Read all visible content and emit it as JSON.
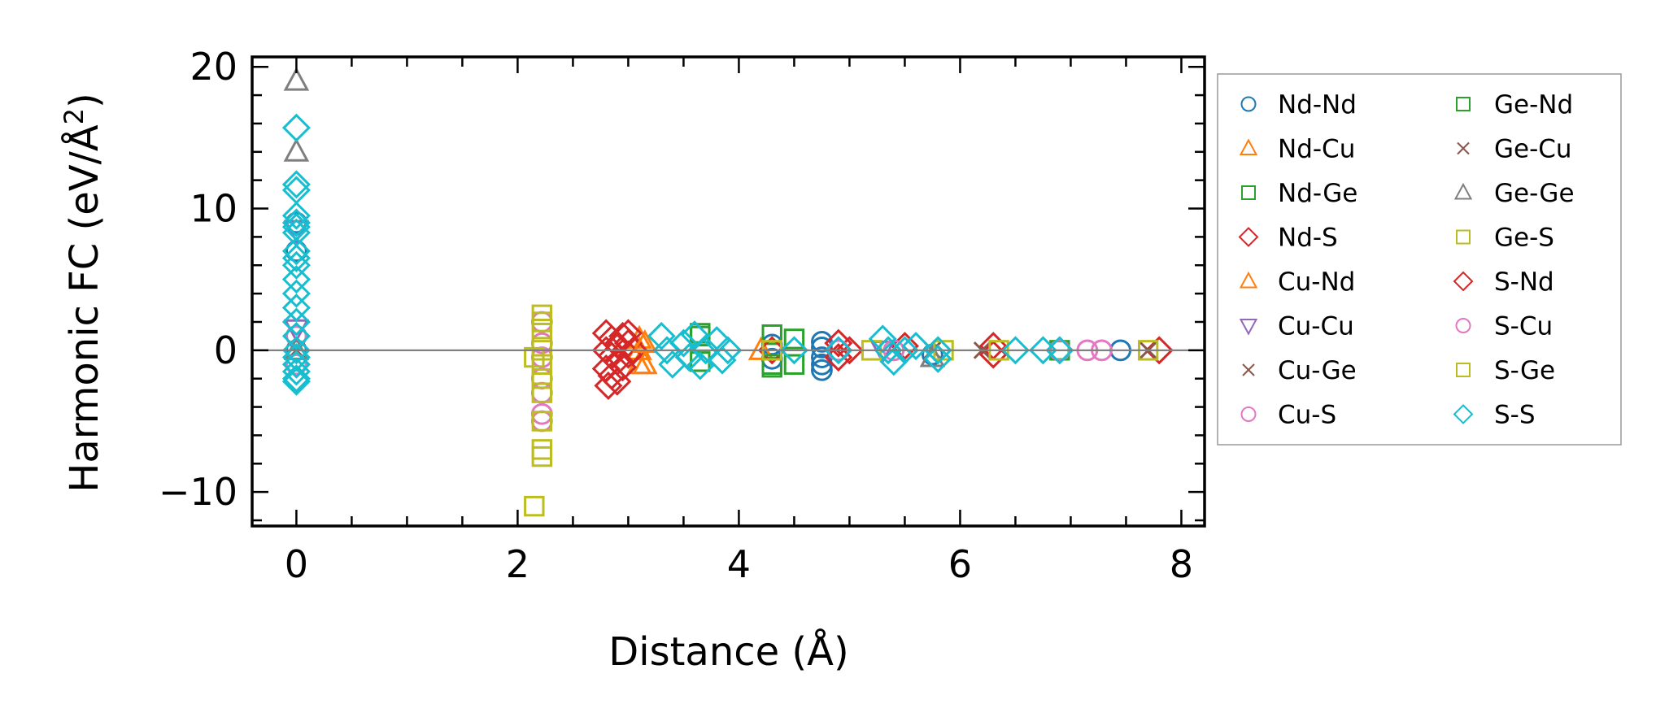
{
  "chart_data": {
    "type": "scatter",
    "title": "",
    "xlabel": "Distance (Å)",
    "ylabel": "Harmonic FC (eV/Å²)",
    "ylabel_parts": {
      "main": "Harmonic FC (eV/Å",
      "sup": "2",
      "end": ")"
    },
    "xlim": [
      -0.4,
      8.21
    ],
    "ylim": [
      -12.4,
      20.7
    ],
    "xticks": [
      0,
      2,
      4,
      6,
      8
    ],
    "xtick_labels": [
      "0",
      "2",
      "4",
      "6",
      "8"
    ],
    "yticks": [
      -10,
      0,
      10,
      20
    ],
    "ytick_labels": [
      "−10",
      "0",
      "10",
      "20"
    ],
    "grid": false,
    "reference_line_y": 0,
    "legend_position": "outside-right",
    "series": [
      {
        "name": "Nd-Nd",
        "color": "#1f77b4",
        "marker": "circle",
        "points": [
          [
            0,
            0
          ],
          [
            0,
            7
          ],
          [
            0,
            9
          ],
          [
            0,
            -1
          ],
          [
            0,
            1
          ],
          [
            4.3,
            0.4
          ],
          [
            4.3,
            -0.6
          ],
          [
            4.75,
            0.6
          ],
          [
            4.75,
            -0.5
          ],
          [
            4.75,
            -1.0
          ],
          [
            4.75,
            -1.4
          ],
          [
            4.75,
            0.2
          ],
          [
            5.75,
            -0.3
          ],
          [
            7.45,
            0
          ]
        ]
      },
      {
        "name": "Nd-Cu",
        "color": "#ff7f0e",
        "marker": "triangle-up",
        "points": [
          [
            3.1,
            0.8
          ],
          [
            3.1,
            -1.0
          ],
          [
            3.1,
            0
          ],
          [
            4.2,
            0
          ]
        ]
      },
      {
        "name": "Nd-Ge",
        "color": "#2ca02c",
        "marker": "square",
        "points": [
          [
            3.65,
            1.2
          ],
          [
            3.65,
            -0.8
          ],
          [
            4.3,
            1.1
          ],
          [
            4.3,
            -1.2
          ],
          [
            4.5,
            0.8
          ],
          [
            4.5,
            -1.0
          ],
          [
            6.9,
            0
          ]
        ]
      },
      {
        "name": "Nd-S",
        "color": "#d62728",
        "marker": "diamond",
        "points": [
          [
            2.8,
            1.2
          ],
          [
            2.85,
            0.8
          ],
          [
            2.9,
            0.4
          ],
          [
            2.8,
            0
          ],
          [
            2.85,
            -0.4
          ],
          [
            2.9,
            -0.8
          ],
          [
            2.8,
            -1.3
          ],
          [
            2.85,
            -1.8
          ],
          [
            2.82,
            -2.5
          ],
          [
            2.95,
            1.0
          ],
          [
            3.0,
            0.5
          ],
          [
            3.0,
            -0.3
          ],
          [
            3.05,
            0
          ],
          [
            2.9,
            -2.2
          ],
          [
            4.3,
            0
          ],
          [
            4.9,
            0.5
          ],
          [
            4.9,
            -0.5
          ],
          [
            5.0,
            0
          ],
          [
            5.5,
            0.3
          ],
          [
            6.3,
            0.3
          ],
          [
            6.3,
            -0.3
          ],
          [
            7.8,
            0
          ]
        ]
      },
      {
        "name": "Cu-Nd",
        "color": "#ff7f0e",
        "marker": "triangle-up",
        "points": [
          [
            3.15,
            0.5
          ],
          [
            3.15,
            -1.0
          ]
        ]
      },
      {
        "name": "Cu-Cu",
        "color": "#9467bd",
        "marker": "triangle-down",
        "points": [
          [
            0,
            8.5
          ],
          [
            0,
            1.5
          ],
          [
            5.3,
            0
          ]
        ]
      },
      {
        "name": "Cu-Ge",
        "color": "#8c564b",
        "marker": "x",
        "points": [
          [
            0,
            0
          ],
          [
            5.75,
            0
          ],
          [
            7.7,
            0
          ]
        ]
      },
      {
        "name": "Cu-S",
        "color": "#e377c2",
        "marker": "circle",
        "points": [
          [
            0,
            1
          ],
          [
            0,
            -1
          ],
          [
            2.22,
            2
          ],
          [
            2.22,
            0.5
          ],
          [
            2.22,
            -0.5
          ],
          [
            2.22,
            -2
          ],
          [
            2.22,
            -3
          ],
          [
            2.22,
            -4.5
          ],
          [
            2.22,
            -5
          ],
          [
            4.9,
            0
          ],
          [
            5.4,
            0
          ]
        ]
      },
      {
        "name": "Ge-Nd",
        "color": "#2ca02c",
        "marker": "square",
        "points": [
          [
            3.65,
            1.0
          ],
          [
            4.3,
            -1.0
          ]
        ]
      },
      {
        "name": "Ge-Cu",
        "color": "#8c564b",
        "marker": "x",
        "points": [
          [
            6.2,
            0
          ]
        ]
      },
      {
        "name": "Ge-Ge",
        "color": "#7f7f7f",
        "marker": "triangle-up",
        "points": [
          [
            0,
            19
          ],
          [
            0,
            14
          ],
          [
            0,
            0
          ],
          [
            5.75,
            -0.5
          ]
        ]
      },
      {
        "name": "Ge-S",
        "color": "#bcbd22",
        "marker": "square",
        "points": [
          [
            2.22,
            2.5
          ],
          [
            2.22,
            2
          ],
          [
            2.22,
            1.5
          ],
          [
            2.15,
            -0.5
          ],
          [
            2.22,
            -2
          ],
          [
            2.22,
            -3
          ],
          [
            2.22,
            -5
          ],
          [
            2.22,
            -7
          ],
          [
            2.22,
            -7.5
          ],
          [
            2.15,
            -11
          ],
          [
            4.3,
            0
          ],
          [
            5.2,
            0
          ],
          [
            5.85,
            0
          ],
          [
            6.35,
            0
          ],
          [
            7.7,
            0
          ]
        ]
      },
      {
        "name": "S-Nd",
        "color": "#d62728",
        "marker": "diamond",
        "points": [
          [
            2.95,
            -1.2
          ],
          [
            3.0,
            1.2
          ]
        ]
      },
      {
        "name": "S-Cu",
        "color": "#e377c2",
        "marker": "circle",
        "points": [
          [
            6.9,
            0
          ],
          [
            7.15,
            0
          ],
          [
            7.28,
            0
          ]
        ]
      },
      {
        "name": "S-Ge",
        "color": "#bcbd22",
        "marker": "square",
        "points": [
          [
            2.22,
            0
          ],
          [
            2.22,
            -1
          ]
        ]
      },
      {
        "name": "S-S",
        "color": "#17becf",
        "marker": "diamond",
        "points": [
          [
            0,
            15.7
          ],
          [
            0,
            11.7
          ],
          [
            0,
            11.3
          ],
          [
            0,
            9.5
          ],
          [
            0,
            9
          ],
          [
            0,
            8.7
          ],
          [
            0,
            8.3
          ],
          [
            0,
            7
          ],
          [
            0,
            6.5
          ],
          [
            0,
            6
          ],
          [
            0,
            5
          ],
          [
            0,
            4
          ],
          [
            0,
            3
          ],
          [
            0,
            2
          ],
          [
            0,
            1
          ],
          [
            0,
            0
          ],
          [
            0,
            -0.5
          ],
          [
            0,
            -1
          ],
          [
            0,
            -1.5
          ],
          [
            0,
            -2
          ],
          [
            0,
            -2.2
          ],
          [
            3.3,
            1
          ],
          [
            3.35,
            0
          ],
          [
            3.4,
            -1
          ],
          [
            3.5,
            0.5
          ],
          [
            3.55,
            -0.5
          ],
          [
            3.6,
            1.1
          ],
          [
            3.65,
            -1.1
          ],
          [
            3.7,
            0
          ],
          [
            3.8,
            0.7
          ],
          [
            3.85,
            -0.7
          ],
          [
            3.9,
            0
          ],
          [
            4.5,
            0
          ],
          [
            4.9,
            0
          ],
          [
            5.3,
            0.8
          ],
          [
            5.35,
            0
          ],
          [
            5.4,
            -0.8
          ],
          [
            5.5,
            0
          ],
          [
            5.6,
            0.3
          ],
          [
            5.8,
            -0.6
          ],
          [
            5.8,
            0
          ],
          [
            6.5,
            0
          ],
          [
            6.75,
            0
          ],
          [
            6.9,
            0
          ]
        ]
      }
    ]
  }
}
